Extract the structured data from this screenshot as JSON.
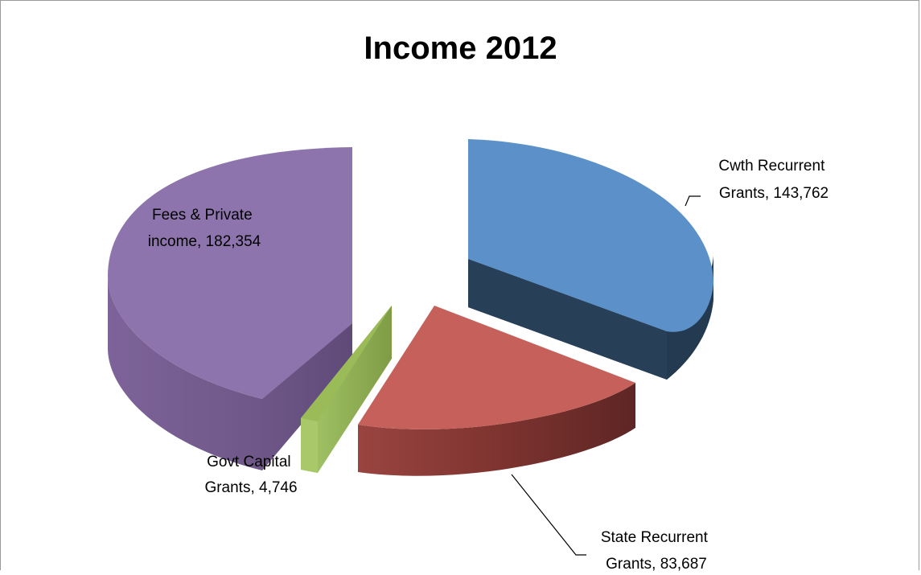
{
  "chart_data": {
    "type": "pie",
    "style": "3d-exploded",
    "title": "Income 2012",
    "slices": [
      {
        "label": "Cwth Recurrent Grants",
        "label_lines": [
          "Cwth Recurrent",
          "Grants,  143,762"
        ],
        "value": 143762,
        "value_text": "143,762",
        "color": "#5b8fc6"
      },
      {
        "label": "State Recurrent Grants",
        "label_lines": [
          "State Recurrent",
          "Grants,  83,687"
        ],
        "value": 83687,
        "value_text": "83,687",
        "color": "#c65f5a"
      },
      {
        "label": "Govt Capital Grants",
        "label_lines": [
          "Govt Capital",
          "Grants,  4,746"
        ],
        "value": 4746,
        "value_text": "4,746",
        "color": "#9bbb59"
      },
      {
        "label": "Fees & Private income",
        "label_lines": [
          "Fees & Private",
          "income,  182,354"
        ],
        "value": 182354,
        "value_text": "182,354",
        "color": "#8e72ab"
      }
    ]
  }
}
